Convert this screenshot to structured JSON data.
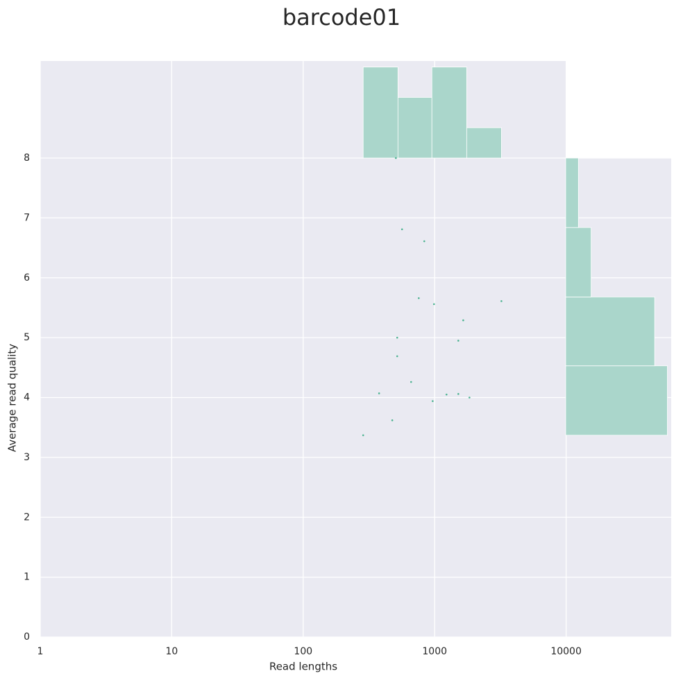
{
  "chart_data": {
    "type": "scatter",
    "title": "barcode01",
    "x_label": "Read lengths",
    "y_label": "Average read quality",
    "x_log": true,
    "grid": true,
    "color": "#4cb391",
    "hist_color": "#aad6cb",
    "x": [
      507,
      565,
      834,
      757,
      989,
      3220,
      1650,
      519,
      1514,
      519,
      662,
      378,
      1231,
      1514,
      1840,
      966,
      476,
      286
    ],
    "y": [
      8.0,
      6.81,
      6.61,
      5.66,
      5.56,
      5.61,
      5.29,
      5.0,
      4.95,
      4.69,
      4.26,
      4.07,
      4.05,
      4.06,
      4.0,
      3.94,
      3.62,
      3.37
    ],
    "xlim": [
      1,
      63000
    ],
    "xticks": [
      1,
      10,
      100,
      1000,
      10000
    ],
    "ylim": [
      0,
      8
    ],
    "yticks": [
      0,
      1,
      2,
      3,
      4,
      5,
      6,
      7,
      8
    ],
    "top_histogram": {
      "bins": [
        286,
        526,
        953,
        1753,
        3220
      ],
      "counts": [
        6,
        4,
        6,
        2
      ],
      "countlim": [
        0,
        6.4
      ]
    },
    "right_histogram": {
      "bins": [
        3.37,
        4.53,
        5.68,
        6.84,
        8.0
      ],
      "counts": [
        8,
        7,
        2,
        1
      ],
      "countlim": [
        0,
        8.3
      ]
    }
  }
}
